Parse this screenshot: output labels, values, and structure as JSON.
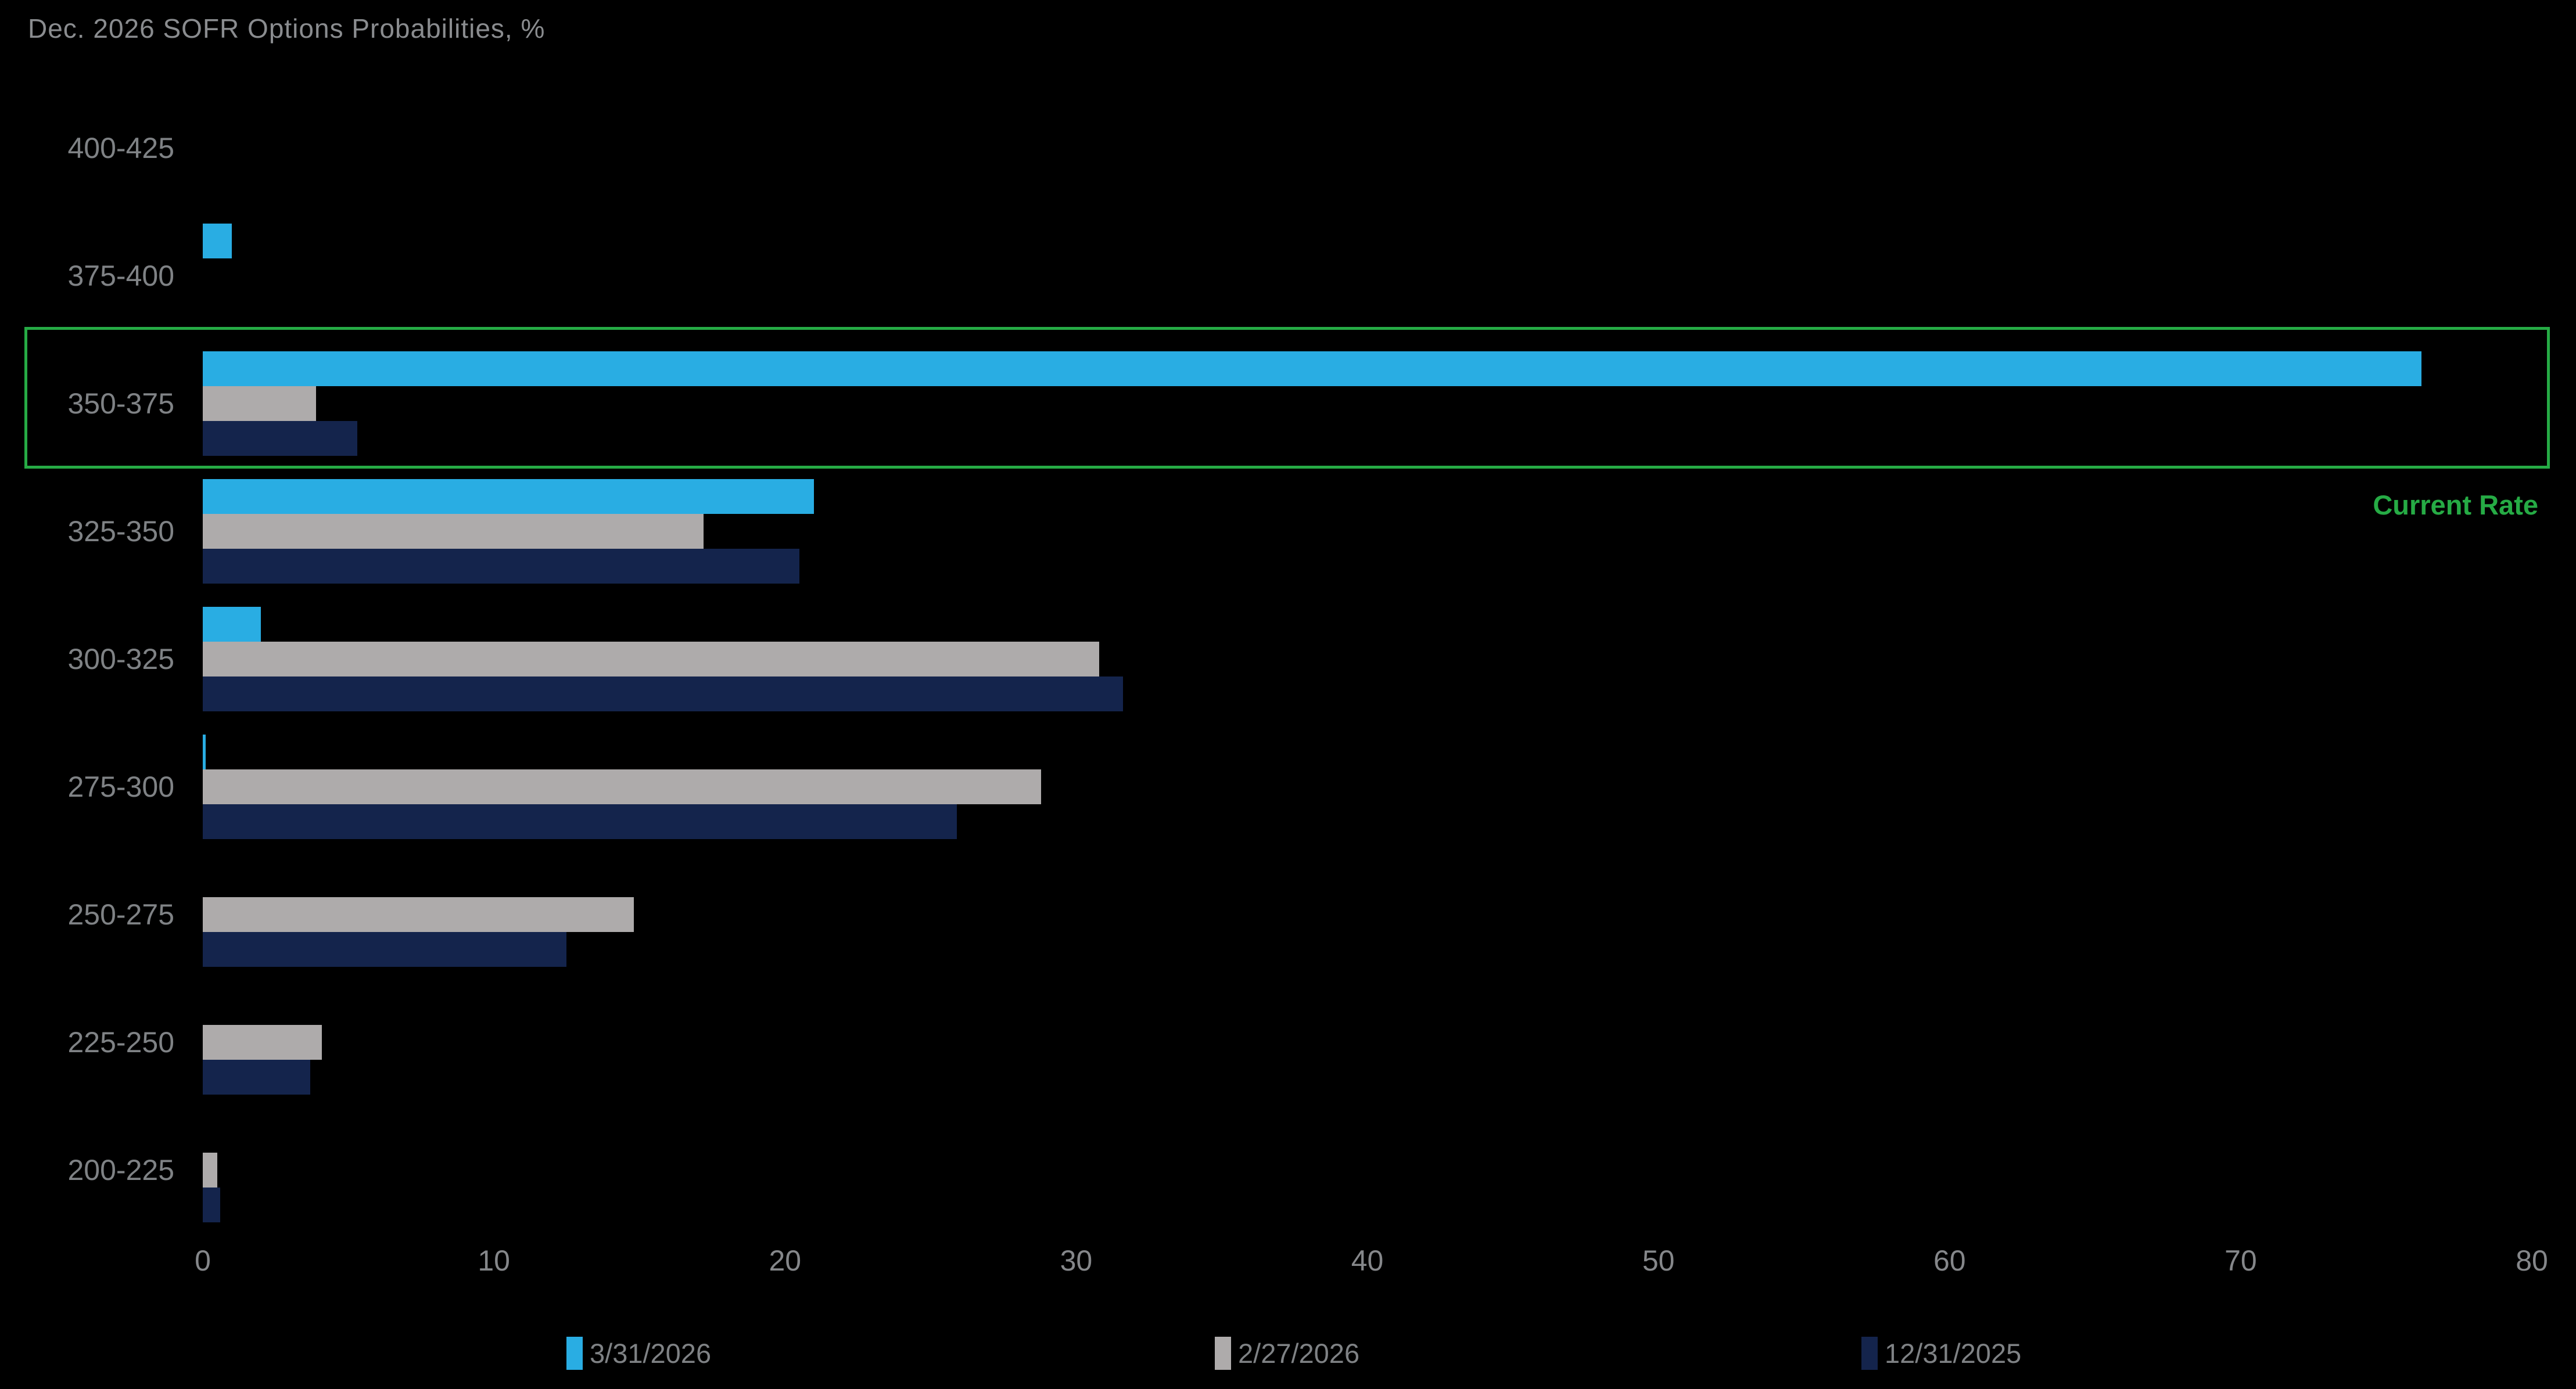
{
  "title": "Dec. 2026 SOFR Options Probabilities, %",
  "chart_data": {
    "type": "bar",
    "orientation": "horizontal",
    "title": "Dec. 2026 SOFR Options Probabilities, %",
    "categories": [
      "400-425",
      "375-400",
      "350-375",
      "325-350",
      "300-325",
      "275-300",
      "250-275",
      "225-250",
      "200-225"
    ],
    "series": [
      {
        "name": "3/31/2026",
        "color": "#29ADE3",
        "values": [
          0,
          1.0,
          76.2,
          21.0,
          2.0,
          0.1,
          0,
          0,
          0
        ]
      },
      {
        "name": "2/27/2026",
        "color": "#AEABAB",
        "values": [
          0,
          0,
          3.9,
          17.2,
          30.8,
          28.8,
          14.8,
          4.1,
          0.5
        ]
      },
      {
        "name": "12/31/2025",
        "color": "#14244C",
        "values": [
          0,
          0,
          5.3,
          20.5,
          31.6,
          25.9,
          12.5,
          3.7,
          0.6
        ]
      }
    ],
    "xlabel": "",
    "ylabel": "",
    "xlim": [
      0,
      80
    ],
    "x_ticks": [
      0,
      10,
      20,
      30,
      40,
      50,
      60,
      70,
      80
    ],
    "grid": false,
    "legend_position": "bottom",
    "annotation": {
      "text": "Current Rate",
      "highlighted_category": "350-375"
    }
  },
  "colors": {
    "background": "#000000",
    "title_text": "#8A8C8F",
    "category_text": "#7F8285",
    "axis_text": "#85878A",
    "legend_text": "#7F8285",
    "highlight_green": "#26AB45"
  }
}
